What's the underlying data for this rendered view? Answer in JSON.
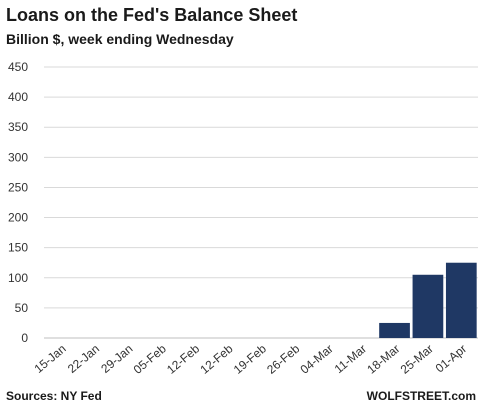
{
  "chart_data": {
    "type": "bar",
    "title": "Loans on the Fed's Balance Sheet",
    "subtitle": "Billion $, week ending Wednesday",
    "categories": [
      "15-Jan",
      "22-Jan",
      "29-Jan",
      "05-Feb",
      "12-Feb",
      "12-Feb",
      "19-Feb",
      "26-Feb",
      "04-Mar",
      "11-Mar",
      "18-Mar",
      "25-Mar",
      "01-Apr"
    ],
    "values": [
      0,
      0,
      0,
      0,
      0,
      0,
      0,
      0,
      0,
      0,
      25,
      105,
      125
    ],
    "ylim": [
      0,
      450
    ],
    "yticks": [
      0,
      50,
      100,
      150,
      200,
      250,
      300,
      350,
      400,
      450
    ],
    "grid": true,
    "bar_color": "#1f3864",
    "grid_color": "#d9d9d9"
  },
  "footer": {
    "source": "Sources: NY Fed",
    "brand": "WOLFSTREET.com"
  }
}
